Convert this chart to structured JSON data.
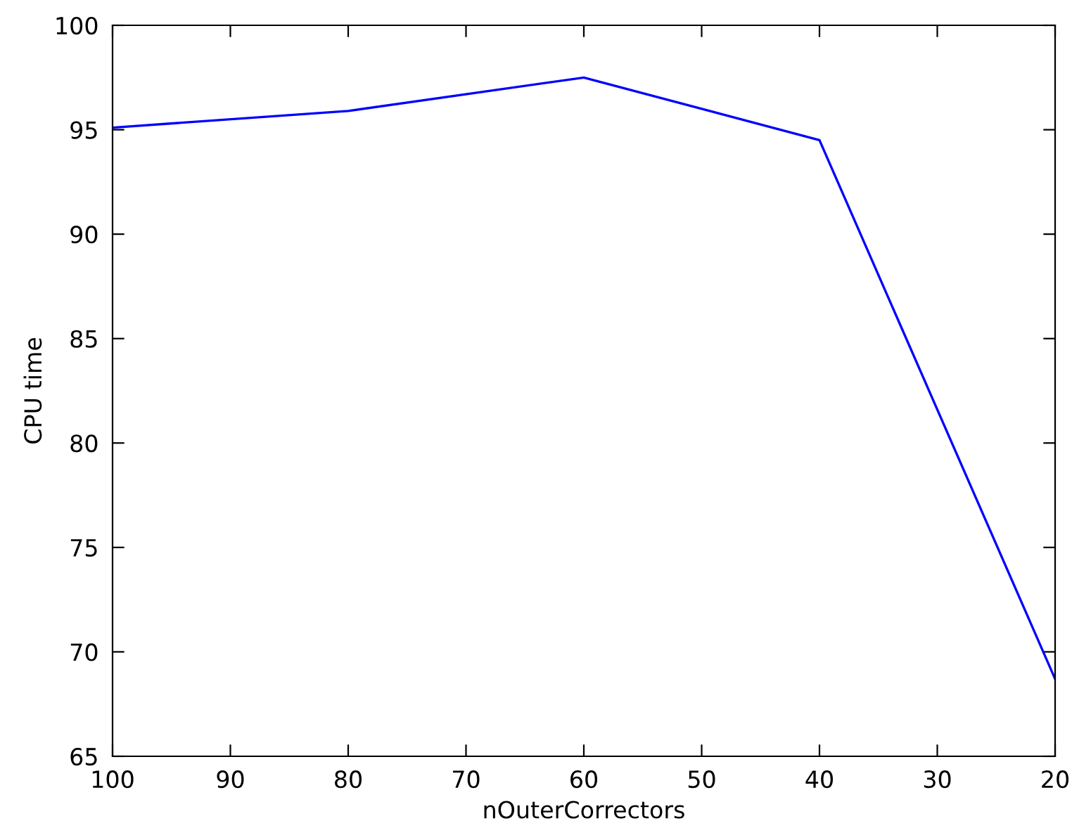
{
  "chart_data": {
    "type": "line",
    "xlabel": "nOuterCorrectors",
    "ylabel": "CPU time",
    "x": [
      100,
      80,
      60,
      40,
      20
    ],
    "series": [
      {
        "color": "#0000ff",
        "values": [
          95.1,
          95.9,
          97.5,
          94.5,
          68.7
        ]
      }
    ],
    "xlim": [
      100,
      20
    ],
    "xticks": [
      100,
      90,
      80,
      70,
      60,
      50,
      40,
      30,
      20
    ],
    "ylim": [
      65,
      100
    ],
    "yticks": [
      65,
      70,
      75,
      80,
      85,
      90,
      95,
      100
    ],
    "grid": false,
    "marker": "none",
    "line_style": "solid"
  }
}
